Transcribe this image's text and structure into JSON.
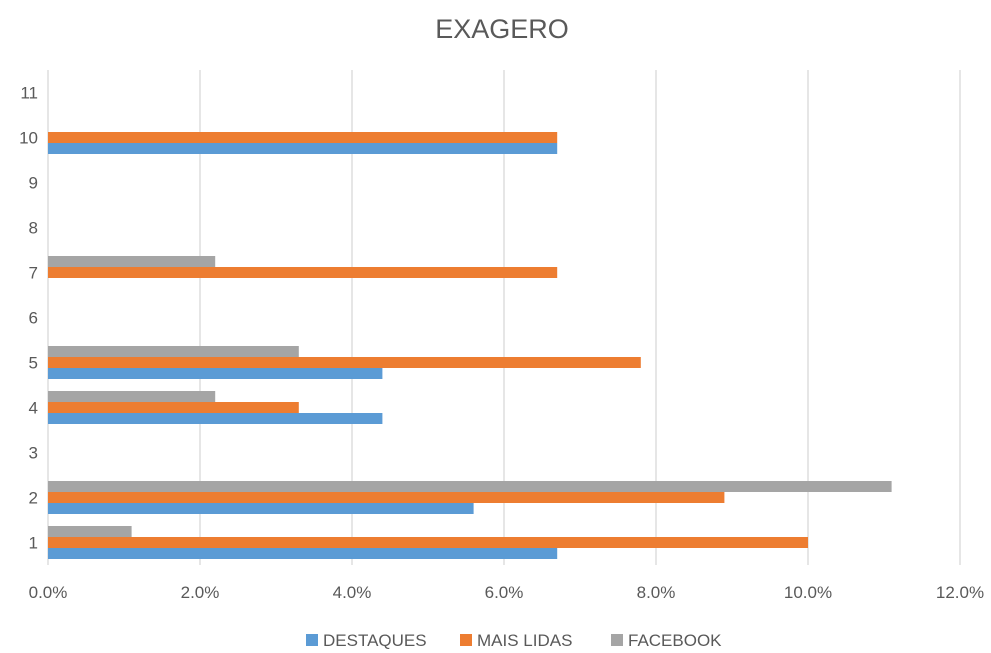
{
  "chart_data": {
    "type": "bar",
    "orientation": "horizontal",
    "title": "EXAGERO",
    "xlabel": "",
    "ylabel": "",
    "categories": [
      "1",
      "2",
      "3",
      "4",
      "5",
      "6",
      "7",
      "8",
      "9",
      "10",
      "11"
    ],
    "xlim": [
      0,
      12
    ],
    "x_ticks": [
      "0.0%",
      "2.0%",
      "4.0%",
      "6.0%",
      "8.0%",
      "10.0%",
      "12.0%"
    ],
    "x_unit": "%",
    "grid": true,
    "legend_position": "bottom",
    "series": [
      {
        "name": "DESTAQUES",
        "color": "#5b9bd5",
        "values": [
          6.7,
          5.6,
          0,
          4.4,
          4.4,
          0,
          0,
          0,
          0,
          6.7,
          0
        ]
      },
      {
        "name": "MAIS LIDAS",
        "color": "#ed7d31",
        "values": [
          10.0,
          8.9,
          0,
          3.3,
          7.8,
          0,
          6.7,
          0,
          0,
          6.7,
          0
        ]
      },
      {
        "name": "FACEBOOK",
        "color": "#a5a5a5",
        "values": [
          1.1,
          11.1,
          0,
          2.2,
          3.3,
          0,
          2.2,
          0,
          0,
          0,
          0
        ]
      }
    ]
  }
}
